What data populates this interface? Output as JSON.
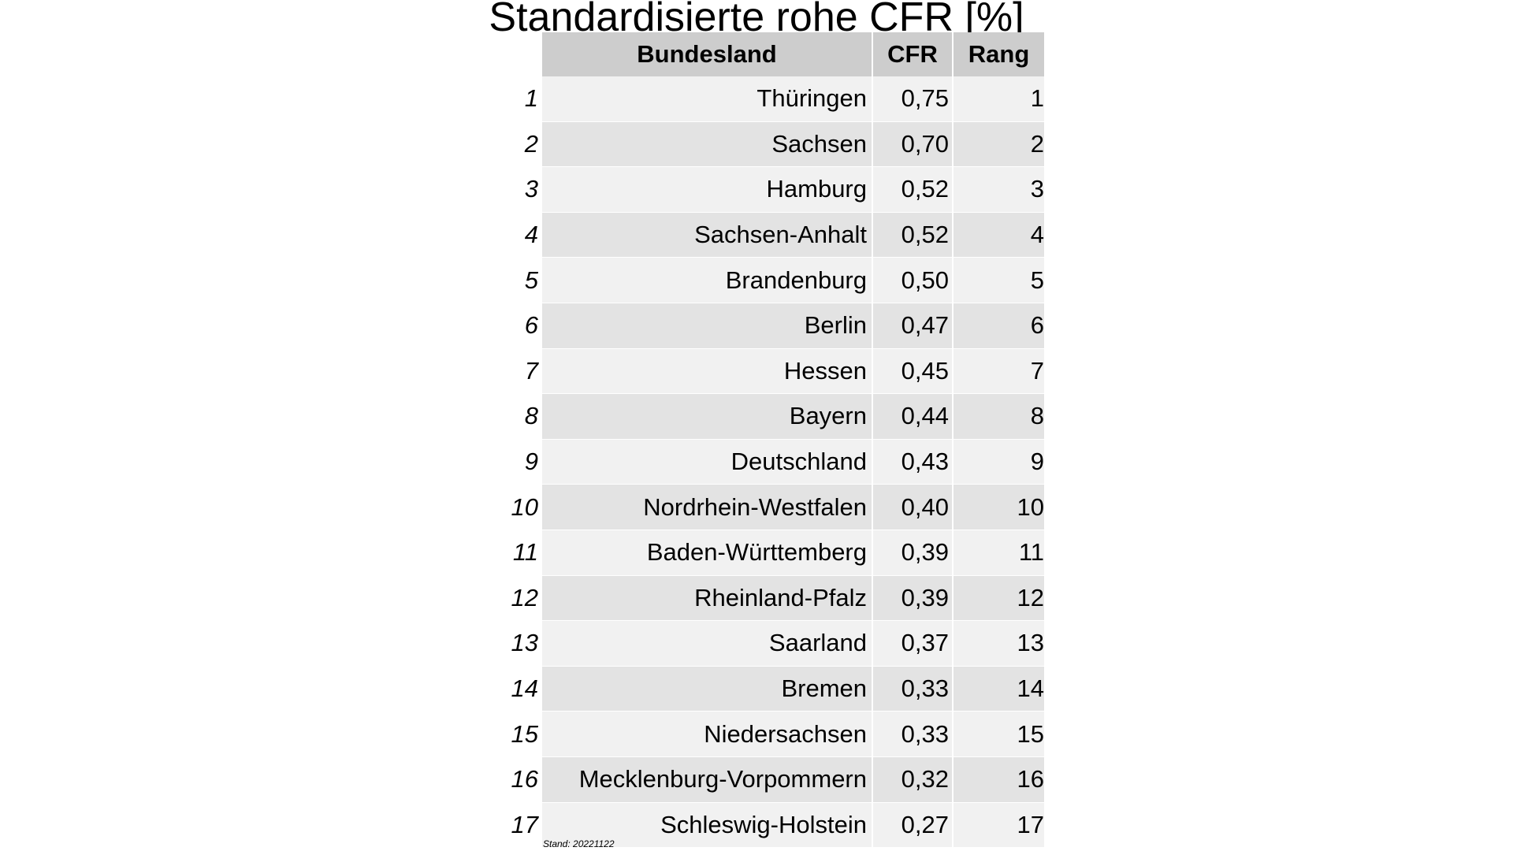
{
  "chart_data": {
    "type": "table",
    "title": "Standardisierte rohe CFR [%]",
    "columns": [
      "Bundesland",
      "CFR",
      "Rang"
    ],
    "rows": [
      {
        "idx": "1",
        "land": "Thüringen",
        "cfr": "0,75",
        "rang": "1"
      },
      {
        "idx": "2",
        "land": "Sachsen",
        "cfr": "0,70",
        "rang": "2"
      },
      {
        "idx": "3",
        "land": "Hamburg",
        "cfr": "0,52",
        "rang": "3"
      },
      {
        "idx": "4",
        "land": "Sachsen-Anhalt",
        "cfr": "0,52",
        "rang": "4"
      },
      {
        "idx": "5",
        "land": "Brandenburg",
        "cfr": "0,50",
        "rang": "5"
      },
      {
        "idx": "6",
        "land": "Berlin",
        "cfr": "0,47",
        "rang": "6"
      },
      {
        "idx": "7",
        "land": "Hessen",
        "cfr": "0,45",
        "rang": "7"
      },
      {
        "idx": "8",
        "land": "Bayern",
        "cfr": "0,44",
        "rang": "8"
      },
      {
        "idx": "9",
        "land": "Deutschland",
        "cfr": "0,43",
        "rang": "9"
      },
      {
        "idx": "10",
        "land": "Nordrhein-Westfalen",
        "cfr": "0,40",
        "rang": "10"
      },
      {
        "idx": "11",
        "land": "Baden-Württemberg",
        "cfr": "0,39",
        "rang": "11"
      },
      {
        "idx": "12",
        "land": "Rheinland-Pfalz",
        "cfr": "0,39",
        "rang": "12"
      },
      {
        "idx": "13",
        "land": "Saarland",
        "cfr": "0,37",
        "rang": "13"
      },
      {
        "idx": "14",
        "land": "Bremen",
        "cfr": "0,33",
        "rang": "14"
      },
      {
        "idx": "15",
        "land": "Niedersachsen",
        "cfr": "0,33",
        "rang": "15"
      },
      {
        "idx": "16",
        "land": "Mecklenburg-Vorpommern",
        "cfr": "0,32",
        "rang": "16"
      },
      {
        "idx": "17",
        "land": "Schleswig-Holstein",
        "cfr": "0,27",
        "rang": "17"
      }
    ],
    "footnote": "Stand: 20221122"
  }
}
